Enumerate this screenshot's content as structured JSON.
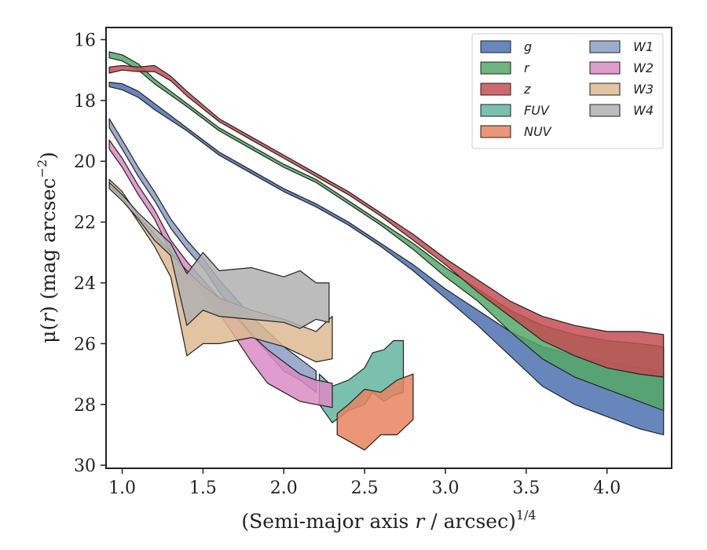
{
  "chart_data": {
    "type": "area",
    "xlabel": "(Semi-major axis r / arcsec)^1/4",
    "xlabel_parts": {
      "pre": "(Semi-major axis ",
      "var": "r",
      "post": " / arcsec)",
      "sup": "1/4"
    },
    "ylabel": "μ(r) (mag arcsec⁻²)",
    "ylabel_parts": {
      "pre": "μ(",
      "var": "r",
      "post": ") (mag arcsec",
      "sup": "−2",
      "end": ")"
    },
    "xlim": [
      0.9,
      4.4
    ],
    "ylim": [
      30.1,
      15.6
    ],
    "y_inverted": true,
    "x_ticks": [
      1.0,
      1.5,
      2.0,
      2.5,
      3.0,
      3.5,
      4.0
    ],
    "x_tick_labels": [
      "1.0",
      "1.5",
      "2.0",
      "2.5",
      "3.0",
      "3.5",
      "4.0"
    ],
    "y_ticks": [
      16,
      18,
      20,
      22,
      24,
      26,
      28,
      30
    ],
    "y_tick_labels": [
      "16",
      "18",
      "20",
      "22",
      "24",
      "26",
      "28",
      "30"
    ],
    "grid": false,
    "legend_position": "top-right",
    "legend_columns": 2,
    "series": [
      {
        "name": "g",
        "color": "#4C72B0",
        "upper": [
          [
            0.92,
            17.4
          ],
          [
            1.0,
            17.45
          ],
          [
            1.1,
            17.7
          ],
          [
            1.2,
            18.1
          ],
          [
            1.4,
            18.9
          ],
          [
            1.6,
            19.7
          ],
          [
            1.8,
            20.3
          ],
          [
            2.0,
            20.9
          ],
          [
            2.2,
            21.4
          ],
          [
            2.4,
            22.0
          ],
          [
            2.6,
            22.7
          ],
          [
            2.8,
            23.4
          ],
          [
            3.0,
            24.2
          ],
          [
            3.2,
            24.9
          ],
          [
            3.4,
            25.6
          ],
          [
            3.6,
            26.1
          ],
          [
            3.8,
            26.4
          ],
          [
            4.0,
            26.6
          ],
          [
            4.2,
            26.8
          ],
          [
            4.35,
            26.9
          ]
        ],
        "lower": [
          [
            0.92,
            17.55
          ],
          [
            1.0,
            17.65
          ],
          [
            1.1,
            17.9
          ],
          [
            1.2,
            18.3
          ],
          [
            1.4,
            19.0
          ],
          [
            1.6,
            19.8
          ],
          [
            1.8,
            20.4
          ],
          [
            2.0,
            21.0
          ],
          [
            2.2,
            21.5
          ],
          [
            2.4,
            22.1
          ],
          [
            2.6,
            22.8
          ],
          [
            2.8,
            23.6
          ],
          [
            3.0,
            24.5
          ],
          [
            3.2,
            25.4
          ],
          [
            3.4,
            26.4
          ],
          [
            3.6,
            27.4
          ],
          [
            3.8,
            28.0
          ],
          [
            4.0,
            28.4
          ],
          [
            4.2,
            28.8
          ],
          [
            4.35,
            29.0
          ]
        ]
      },
      {
        "name": "r",
        "color": "#55A868",
        "upper": [
          [
            0.92,
            16.4
          ],
          [
            1.0,
            16.5
          ],
          [
            1.1,
            16.8
          ],
          [
            1.2,
            17.3
          ],
          [
            1.4,
            18.1
          ],
          [
            1.6,
            18.9
          ],
          [
            1.8,
            19.5
          ],
          [
            2.0,
            20.1
          ],
          [
            2.2,
            20.6
          ],
          [
            2.4,
            21.3
          ],
          [
            2.6,
            22.0
          ],
          [
            2.8,
            22.7
          ],
          [
            3.0,
            23.5
          ],
          [
            3.2,
            24.2
          ],
          [
            3.4,
            24.9
          ],
          [
            3.6,
            25.4
          ],
          [
            3.8,
            25.7
          ],
          [
            4.0,
            25.9
          ],
          [
            4.2,
            26.0
          ],
          [
            4.35,
            26.1
          ]
        ],
        "lower": [
          [
            0.92,
            16.6
          ],
          [
            1.0,
            16.7
          ],
          [
            1.1,
            17.0
          ],
          [
            1.2,
            17.45
          ],
          [
            1.4,
            18.2
          ],
          [
            1.6,
            19.0
          ],
          [
            1.8,
            19.6
          ],
          [
            2.0,
            20.2
          ],
          [
            2.2,
            20.7
          ],
          [
            2.4,
            21.4
          ],
          [
            2.6,
            22.1
          ],
          [
            2.8,
            22.9
          ],
          [
            3.0,
            23.8
          ],
          [
            3.2,
            24.6
          ],
          [
            3.4,
            25.6
          ],
          [
            3.6,
            26.5
          ],
          [
            3.8,
            27.1
          ],
          [
            4.0,
            27.5
          ],
          [
            4.2,
            27.9
          ],
          [
            4.35,
            28.2
          ]
        ]
      },
      {
        "name": "z",
        "color": "#C44E52",
        "upper": [
          [
            0.92,
            16.9
          ],
          [
            1.0,
            16.85
          ],
          [
            1.1,
            16.9
          ],
          [
            1.2,
            16.85
          ],
          [
            1.3,
            17.2
          ],
          [
            1.4,
            17.7
          ],
          [
            1.6,
            18.6
          ],
          [
            1.8,
            19.2
          ],
          [
            2.0,
            19.8
          ],
          [
            2.2,
            20.4
          ],
          [
            2.4,
            21.0
          ],
          [
            2.6,
            21.7
          ],
          [
            2.8,
            22.4
          ],
          [
            3.0,
            23.2
          ],
          [
            3.2,
            23.9
          ],
          [
            3.4,
            24.6
          ],
          [
            3.6,
            25.1
          ],
          [
            3.8,
            25.4
          ],
          [
            4.0,
            25.6
          ],
          [
            4.2,
            25.6
          ],
          [
            4.35,
            25.7
          ]
        ],
        "lower": [
          [
            0.92,
            17.1
          ],
          [
            1.0,
            17.0
          ],
          [
            1.1,
            17.05
          ],
          [
            1.2,
            17.05
          ],
          [
            1.3,
            17.35
          ],
          [
            1.4,
            17.85
          ],
          [
            1.6,
            18.7
          ],
          [
            1.8,
            19.3
          ],
          [
            2.0,
            19.9
          ],
          [
            2.2,
            20.5
          ],
          [
            2.4,
            21.1
          ],
          [
            2.6,
            21.8
          ],
          [
            2.8,
            22.6
          ],
          [
            3.0,
            23.4
          ],
          [
            3.2,
            24.3
          ],
          [
            3.4,
            25.1
          ],
          [
            3.6,
            25.9
          ],
          [
            3.8,
            26.4
          ],
          [
            4.0,
            26.8
          ],
          [
            4.2,
            27.0
          ],
          [
            4.35,
            27.1
          ]
        ]
      },
      {
        "name": "FUV",
        "color": "#64B5A0",
        "upper": [
          [
            2.22,
            27.0
          ],
          [
            2.3,
            27.4
          ],
          [
            2.4,
            27.2
          ],
          [
            2.5,
            26.8
          ],
          [
            2.55,
            26.3
          ],
          [
            2.62,
            26.2
          ],
          [
            2.68,
            25.9
          ],
          [
            2.74,
            25.9
          ]
        ],
        "lower": [
          [
            2.22,
            28.0
          ],
          [
            2.3,
            28.6
          ],
          [
            2.4,
            28.2
          ],
          [
            2.5,
            28.0
          ],
          [
            2.55,
            27.6
          ],
          [
            2.62,
            27.9
          ],
          [
            2.68,
            27.7
          ],
          [
            2.74,
            27.6
          ]
        ]
      },
      {
        "name": "NUV",
        "color": "#E8845F",
        "upper": [
          [
            2.33,
            28.3
          ],
          [
            2.4,
            28.0
          ],
          [
            2.5,
            27.5
          ],
          [
            2.6,
            27.6
          ],
          [
            2.7,
            27.2
          ],
          [
            2.8,
            27.0
          ]
        ],
        "lower": [
          [
            2.33,
            29.0
          ],
          [
            2.4,
            29.2
          ],
          [
            2.5,
            29.5
          ],
          [
            2.6,
            29.0
          ],
          [
            2.7,
            29.0
          ],
          [
            2.8,
            28.5
          ]
        ]
      },
      {
        "name": "W1",
        "color": "#8C9CC4",
        "upper": [
          [
            0.92,
            18.6
          ],
          [
            1.0,
            19.3
          ],
          [
            1.1,
            20.2
          ],
          [
            1.2,
            21.0
          ],
          [
            1.3,
            21.9
          ],
          [
            1.4,
            22.6
          ],
          [
            1.5,
            23.2
          ],
          [
            1.6,
            23.9
          ],
          [
            1.7,
            24.5
          ],
          [
            1.8,
            25.1
          ],
          [
            1.9,
            25.6
          ],
          [
            2.0,
            26.1
          ],
          [
            2.1,
            26.5
          ],
          [
            2.2,
            26.9
          ]
        ],
        "lower": [
          [
            0.92,
            18.9
          ],
          [
            1.0,
            19.6
          ],
          [
            1.1,
            20.5
          ],
          [
            1.2,
            21.3
          ],
          [
            1.3,
            22.2
          ],
          [
            1.4,
            22.9
          ],
          [
            1.5,
            23.5
          ],
          [
            1.6,
            24.3
          ],
          [
            1.7,
            25.0
          ],
          [
            1.8,
            25.7
          ],
          [
            1.9,
            26.3
          ],
          [
            2.0,
            26.9
          ],
          [
            2.1,
            27.2
          ],
          [
            2.2,
            27.6
          ]
        ]
      },
      {
        "name": "W2",
        "color": "#DA8BC3",
        "upper": [
          [
            0.92,
            19.3
          ],
          [
            1.0,
            19.9
          ],
          [
            1.1,
            20.8
          ],
          [
            1.2,
            21.6
          ],
          [
            1.3,
            22.6
          ],
          [
            1.4,
            23.3
          ],
          [
            1.5,
            23.9
          ],
          [
            1.6,
            24.5
          ],
          [
            1.7,
            25.1
          ],
          [
            1.8,
            25.7
          ],
          [
            1.9,
            26.2
          ],
          [
            2.0,
            26.6
          ],
          [
            2.1,
            27.0
          ],
          [
            2.2,
            27.2
          ],
          [
            2.3,
            27.3
          ]
        ],
        "lower": [
          [
            0.92,
            19.6
          ],
          [
            1.0,
            20.2
          ],
          [
            1.1,
            21.1
          ],
          [
            1.2,
            21.9
          ],
          [
            1.3,
            23.0
          ],
          [
            1.4,
            23.7
          ],
          [
            1.5,
            24.3
          ],
          [
            1.6,
            25.0
          ],
          [
            1.7,
            25.8
          ],
          [
            1.8,
            26.6
          ],
          [
            1.9,
            27.3
          ],
          [
            2.0,
            27.6
          ],
          [
            2.1,
            27.9
          ],
          [
            2.2,
            28.0
          ],
          [
            2.3,
            28.1
          ]
        ]
      },
      {
        "name": "W3",
        "color": "#DDB992",
        "upper": [
          [
            0.92,
            20.6
          ],
          [
            1.0,
            21.0
          ],
          [
            1.1,
            21.8
          ],
          [
            1.2,
            22.4
          ],
          [
            1.3,
            23.0
          ],
          [
            1.4,
            23.6
          ],
          [
            1.5,
            24.1
          ],
          [
            1.6,
            24.5
          ],
          [
            1.8,
            24.9
          ],
          [
            2.0,
            25.2
          ],
          [
            2.2,
            25.6
          ],
          [
            2.3,
            25.1
          ]
        ],
        "lower": [
          [
            0.92,
            20.8
          ],
          [
            1.0,
            21.2
          ],
          [
            1.1,
            22.0
          ],
          [
            1.2,
            22.8
          ],
          [
            1.3,
            23.8
          ],
          [
            1.4,
            26.4
          ],
          [
            1.5,
            26.0
          ],
          [
            1.6,
            26.0
          ],
          [
            1.8,
            25.8
          ],
          [
            2.0,
            26.1
          ],
          [
            2.2,
            26.6
          ],
          [
            2.3,
            26.5
          ]
        ]
      },
      {
        "name": "W4",
        "color": "#B0B0B0",
        "upper": [
          [
            0.92,
            20.7
          ],
          [
            1.0,
            21.1
          ],
          [
            1.1,
            21.7
          ],
          [
            1.2,
            22.2
          ],
          [
            1.3,
            22.7
          ],
          [
            1.4,
            23.7
          ],
          [
            1.5,
            23.0
          ],
          [
            1.6,
            23.6
          ],
          [
            1.8,
            23.5
          ],
          [
            2.0,
            23.8
          ],
          [
            2.1,
            23.6
          ],
          [
            2.2,
            24.0
          ],
          [
            2.28,
            24.0
          ]
        ],
        "lower": [
          [
            0.92,
            20.9
          ],
          [
            1.0,
            21.3
          ],
          [
            1.1,
            21.9
          ],
          [
            1.2,
            22.6
          ],
          [
            1.3,
            23.1
          ],
          [
            1.4,
            25.4
          ],
          [
            1.5,
            24.9
          ],
          [
            1.6,
            25.1
          ],
          [
            1.8,
            25.2
          ],
          [
            2.0,
            25.3
          ],
          [
            2.1,
            25.5
          ],
          [
            2.2,
            25.2
          ],
          [
            2.28,
            25.3
          ]
        ]
      }
    ]
  }
}
